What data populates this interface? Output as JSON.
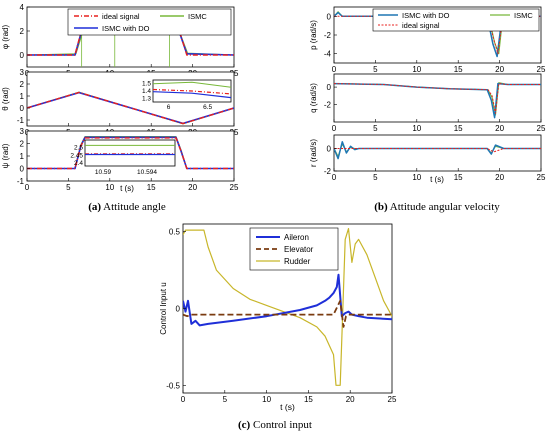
{
  "captions": {
    "a_label": "(a)",
    "a_text": " Attitude angle",
    "b_label": "(b)",
    "b_text": " Attitude angular velocity",
    "c_label": "(c)",
    "c_text": " Control input"
  },
  "colors": {
    "ideal": "#e8201f",
    "ismc_do_a": "#1f2fd8",
    "ismc_a": "#78b83a",
    "ismc_do_b": "#1f77b4",
    "ismc_b": "#78b83a",
    "ideal_b": "#e8201f",
    "aileron": "#1f2fd8",
    "elevator": "#7a3b10",
    "rudder": "#c8b62a"
  },
  "chart_data": [
    {
      "id": "a",
      "type": "line",
      "shared_xlabel": "t (s)",
      "x_ticks": [
        "0",
        "5",
        "10",
        "15",
        "20",
        "25"
      ],
      "legend": [
        "ideal signal",
        "ISMC with DO",
        "ISMC"
      ],
      "legend_placement": "top-right",
      "panels": [
        {
          "ylabel": "φ (rad)",
          "ylim": [
            -1,
            4
          ],
          "y_ticks": [
            "0",
            "2",
            "4"
          ],
          "series": [
            {
              "name": "ideal signal",
              "x": [
                0,
                5.8,
                6.4,
                7,
                18,
                18.5,
                19.3,
                25
              ],
              "y": [
                0,
                0,
                1.6,
                3,
                3,
                1.8,
                0,
                0
              ]
            },
            {
              "name": "ISMC with DO",
              "x": [
                0,
                5.8,
                6.4,
                7,
                18,
                18.5,
                19.3,
                25
              ],
              "y": [
                0,
                0,
                1.5,
                2.95,
                2.95,
                1.7,
                0.1,
                0
              ]
            },
            {
              "name": "ISMC",
              "x": [
                0,
                5.9,
                6.5,
                7.1,
                18.1,
                18.6,
                19.4,
                25
              ],
              "y": [
                0,
                0.1,
                1.4,
                2.9,
                2.9,
                1.6,
                0.15,
                0
              ]
            }
          ]
        },
        {
          "ylabel": "θ (rad)",
          "ylim": [
            -1.5,
            3
          ],
          "y_ticks": [
            "-1",
            "0",
            "1",
            "2",
            "3"
          ],
          "series": [
            {
              "name": "ideal signal",
              "x": [
                0,
                6.28,
                12.56,
                18.84,
                25
              ],
              "y": [
                0,
                1.3,
                0,
                -1.3,
                0
              ]
            },
            {
              "name": "ISMC with DO",
              "x": [
                0,
                6.28,
                12.56,
                18.84,
                25
              ],
              "y": [
                0,
                1.28,
                0,
                -1.28,
                0
              ]
            },
            {
              "name": "ISMC",
              "x": [
                0,
                6.28,
                12.56,
                18.84,
                25
              ],
              "y": [
                0,
                1.32,
                0,
                -1.32,
                0
              ]
            }
          ],
          "inset": {
            "y_ticks": [
              "1.3",
              "1.4",
              "1.5"
            ],
            "x_ticks": [
              "6",
              "6.5"
            ]
          }
        },
        {
          "ylabel": "ψ (rad)",
          "ylim": [
            -1,
            3
          ],
          "y_ticks": [
            "-1",
            "0",
            "1",
            "2",
            "3"
          ],
          "series": [
            {
              "name": "ideal signal",
              "x": [
                0,
                5.8,
                6.5,
                7,
                18,
                18.6,
                19.3,
                25
              ],
              "y": [
                0,
                0,
                1.8,
                2.45,
                2.45,
                1.4,
                0,
                0
              ]
            },
            {
              "name": "ISMC with DO",
              "x": [
                0,
                5.8,
                6.5,
                7,
                18,
                18.6,
                19.3,
                25
              ],
              "y": [
                0,
                0,
                1.8,
                2.5,
                2.5,
                1.4,
                0,
                0
              ]
            },
            {
              "name": "ISMC",
              "x": [
                0,
                5.8,
                6.5,
                7,
                18,
                18.6,
                19.3,
                25
              ],
              "y": [
                0,
                0,
                1.9,
                2.55,
                2.55,
                1.5,
                0,
                0
              ]
            }
          ],
          "inset": {
            "y_ticks": [
              "2.4",
              "2.45",
              "2.5"
            ],
            "x_ticks": [
              "10.59",
              "10.594"
            ]
          }
        }
      ]
    },
    {
      "id": "b",
      "type": "line",
      "shared_xlabel": "t (s)",
      "x_ticks": [
        "0",
        "5",
        "10",
        "15",
        "20",
        "25"
      ],
      "legend": [
        "ISMC with DO",
        "ISMC",
        "ideal signal"
      ],
      "legend_placement": "top-right",
      "panels": [
        {
          "ylabel": "p (rad/s)",
          "ylim": [
            -5,
            1
          ],
          "y_ticks": [
            "-4",
            "-2",
            "0"
          ],
          "series": [
            {
              "name": "ISMC with DO",
              "x": [
                0,
                0.5,
                1,
                18.5,
                19.2,
                19.7,
                20.3,
                25
              ],
              "y": [
                0,
                0.4,
                0,
                0,
                -3,
                -4.3,
                0,
                0
              ]
            },
            {
              "name": "ISMC",
              "x": [
                0,
                0.5,
                1,
                18.7,
                19.4,
                19.9,
                20.4,
                25
              ],
              "y": [
                0,
                0.5,
                0,
                0,
                -2.8,
                -4,
                0,
                0
              ]
            },
            {
              "name": "ideal signal",
              "x": [
                0,
                18.6,
                19.3,
                19.8,
                20.4,
                25
              ],
              "y": [
                0,
                0,
                -2.5,
                -4,
                0,
                0
              ]
            }
          ]
        },
        {
          "ylabel": "q (rad/s)",
          "ylim": [
            -4,
            1.5
          ],
          "y_ticks": [
            "-2",
            "0"
          ],
          "series": [
            {
              "name": "ISMC with DO",
              "x": [
                0,
                6,
                10,
                14,
                18.5,
                19,
                19.4,
                19.8,
                21,
                25
              ],
              "y": [
                0.4,
                0.3,
                0,
                -0.2,
                -0.3,
                -1.5,
                -3.5,
                0.4,
                0.3,
                0.3
              ]
            },
            {
              "name": "ISMC",
              "x": [
                0,
                6,
                10,
                14,
                18.6,
                19.1,
                19.5,
                19.9,
                21,
                25
              ],
              "y": [
                0.4,
                0.3,
                0,
                -0.2,
                -0.3,
                -1.2,
                -3.2,
                0.5,
                0.3,
                0.3
              ]
            },
            {
              "name": "ideal signal",
              "x": [
                0,
                6,
                10,
                14,
                18.6,
                19.1,
                19.5,
                19.9,
                21,
                25
              ],
              "y": [
                0.4,
                0.3,
                0,
                -0.2,
                -0.3,
                -1,
                -3,
                0.4,
                0.3,
                0.3
              ]
            }
          ]
        },
        {
          "ylabel": "r (rad/s)",
          "ylim": [
            -2,
            1.2
          ],
          "y_ticks": [
            "-2",
            "0"
          ],
          "series": [
            {
              "name": "ISMC with DO",
              "x": [
                0,
                0.5,
                1,
                1.5,
                2,
                2.5,
                3,
                5,
                18.5,
                19,
                19.5,
                20.5,
                25
              ],
              "y": [
                0,
                -0.9,
                0.6,
                -0.4,
                0.2,
                -0.1,
                0,
                0,
                0,
                -0.5,
                0.3,
                0,
                0
              ]
            },
            {
              "name": "ISMC",
              "x": [
                0,
                0.5,
                1,
                1.5,
                2,
                2.5,
                3,
                5,
                18.5,
                19,
                19.5,
                20.5,
                25
              ],
              "y": [
                0,
                -0.7,
                0.4,
                -0.3,
                0.1,
                0,
                0,
                0,
                0,
                -0.4,
                0.2,
                0,
                0
              ]
            },
            {
              "name": "ideal signal",
              "x": [
                0,
                18.5,
                19.3,
                20.5,
                25
              ],
              "y": [
                0,
                0,
                -0.3,
                0,
                0
              ]
            }
          ]
        }
      ]
    },
    {
      "id": "c",
      "type": "line",
      "xlabel": "t (s)",
      "ylabel": "Control Input u",
      "xlim": [
        0,
        25
      ],
      "ylim": [
        -0.55,
        0.55
      ],
      "x_ticks": [
        "0",
        "5",
        "10",
        "15",
        "20",
        "25"
      ],
      "y_ticks": [
        "-0.5",
        "0",
        "0.5"
      ],
      "legend": [
        "Aileron",
        "Elevator",
        "Rudder"
      ],
      "legend_placement": "top-center",
      "series": [
        {
          "name": "Aileron",
          "x": [
            0,
            0.3,
            0.6,
            1,
            1.5,
            2,
            3,
            6,
            10,
            14,
            16,
            17,
            17.5,
            18,
            18.4,
            18.6,
            19,
            19.4,
            19.8,
            20.2,
            21,
            22,
            25
          ],
          "y": [
            0.05,
            -0.02,
            0.05,
            -0.1,
            -0.08,
            -0.11,
            -0.1,
            -0.08,
            -0.05,
            -0.01,
            0.02,
            0.05,
            0.07,
            0.1,
            0.14,
            0.22,
            -0.05,
            -0.03,
            -0.02,
            -0.04,
            -0.05,
            -0.06,
            -0.07
          ]
        },
        {
          "name": "Elevator",
          "x": [
            0,
            0.5,
            1,
            5,
            10,
            15,
            18,
            18.8,
            19.2,
            19.5,
            19.8,
            20.5,
            25
          ],
          "y": [
            -0.04,
            -0.05,
            -0.04,
            -0.04,
            -0.04,
            -0.04,
            -0.04,
            0.05,
            -0.12,
            -0.05,
            -0.04,
            -0.04,
            -0.04
          ]
        },
        {
          "name": "Rudder",
          "x": [
            0,
            0.3,
            0.8,
            1.5,
            2.5,
            3,
            4,
            6,
            8,
            10,
            12,
            14,
            16,
            17,
            18,
            18.3,
            18.8,
            19,
            19.4,
            19.8,
            20.2,
            20.6,
            21,
            22,
            23,
            24,
            25
          ],
          "y": [
            0.48,
            0.51,
            0.51,
            0.51,
            0.51,
            0.4,
            0.25,
            0.13,
            0.06,
            0.02,
            -0.02,
            -0.06,
            -0.12,
            -0.18,
            -0.3,
            -0.5,
            -0.5,
            -0.2,
            0.45,
            0.52,
            0.3,
            0.42,
            0.45,
            0.35,
            0.2,
            0.05,
            -0.05
          ]
        }
      ]
    }
  ]
}
